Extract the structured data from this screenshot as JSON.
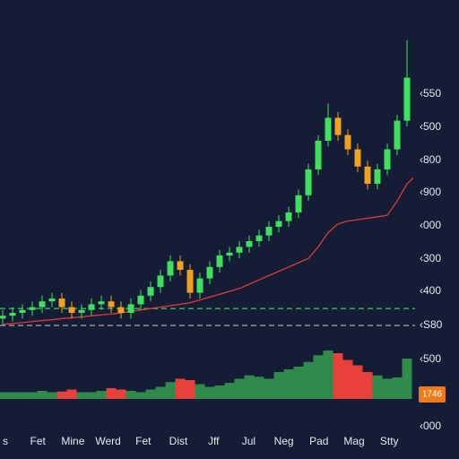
{
  "chart_data": {
    "type": "candlestick",
    "x_labels": [
      "s",
      "Fet",
      "Mine",
      "Werd",
      "Fet",
      "Dist",
      "Jff",
      "Jul",
      "Neg",
      "Pad",
      "Mag",
      "Stty"
    ],
    "axis_labels": [
      "‹550",
      "‹500",
      "‹800",
      "‹900",
      "‹000",
      "‹300",
      "‹400",
      "‹S80",
      "‹500",
      "‹000"
    ],
    "badge": "1746",
    "ylim": [
      0,
      100
    ],
    "open": [
      3,
      4,
      5,
      6,
      7,
      9,
      10,
      7,
      5,
      6,
      8,
      9,
      7,
      5,
      8,
      11,
      14,
      18,
      23,
      20,
      12,
      17,
      21,
      25,
      26,
      28,
      30,
      32,
      35,
      37,
      40,
      46,
      55,
      65,
      73,
      67,
      62,
      56,
      50,
      55,
      62,
      72
    ],
    "high": [
      6,
      7,
      8,
      9,
      11,
      12,
      12,
      9,
      8,
      10,
      11,
      11,
      9,
      10,
      13,
      16,
      20,
      25,
      25,
      22,
      19,
      23,
      27,
      28,
      30,
      32,
      34,
      37,
      39,
      42,
      48,
      57,
      67,
      78,
      75,
      69,
      64,
      58,
      57,
      64,
      74,
      100
    ],
    "low": [
      1,
      2,
      3,
      4,
      5,
      7,
      5,
      3,
      3,
      4,
      6,
      5,
      3,
      3,
      6,
      9,
      12,
      16,
      18,
      10,
      10,
      15,
      19,
      23,
      24,
      26,
      28,
      30,
      33,
      35,
      38,
      44,
      53,
      63,
      65,
      60,
      54,
      48,
      48,
      53,
      60,
      70
    ],
    "close": [
      4,
      5,
      6,
      7,
      9,
      10,
      7,
      5,
      6,
      8,
      9,
      7,
      5,
      8,
      11,
      14,
      18,
      23,
      20,
      12,
      17,
      21,
      25,
      26,
      28,
      30,
      32,
      35,
      37,
      40,
      46,
      55,
      65,
      73,
      67,
      62,
      56,
      50,
      55,
      62,
      72,
      87
    ],
    "ma": [
      1,
      1.3,
      1.6,
      2,
      2.3,
      2.6,
      3,
      3.3,
      3.6,
      4,
      4.3,
      4.6,
      5,
      5.5,
      6,
      6.5,
      7,
      7.5,
      8,
      8.5,
      9.5,
      10.5,
      11.5,
      12.5,
      13.5,
      15,
      16.5,
      18,
      19.5,
      21,
      22.5,
      24,
      28,
      33,
      36,
      37,
      37.5,
      38,
      38.5,
      39,
      44,
      50
    ],
    "volume": [
      10,
      10,
      10,
      10,
      12,
      10,
      11,
      14,
      10,
      10,
      12,
      16,
      14,
      12,
      10,
      14,
      18,
      25,
      30,
      28,
      22,
      18,
      20,
      24,
      30,
      35,
      33,
      30,
      40,
      44,
      48,
      55,
      65,
      72,
      68,
      58,
      50,
      40,
      35,
      30,
      32,
      60
    ],
    "volume_lim": [
      0,
      100
    ],
    "levels": [
      {
        "value": 6.5,
        "color": "#2fbf5a"
      },
      {
        "value": 0.6,
        "color": "#9aa0b0"
      }
    ],
    "up_color": "#3ee05e",
    "down_color": "#f0a21e",
    "ma_color": "#e23a35",
    "volume_up_color": "#2f8a4c",
    "volume_down_color": "#e8403a"
  }
}
